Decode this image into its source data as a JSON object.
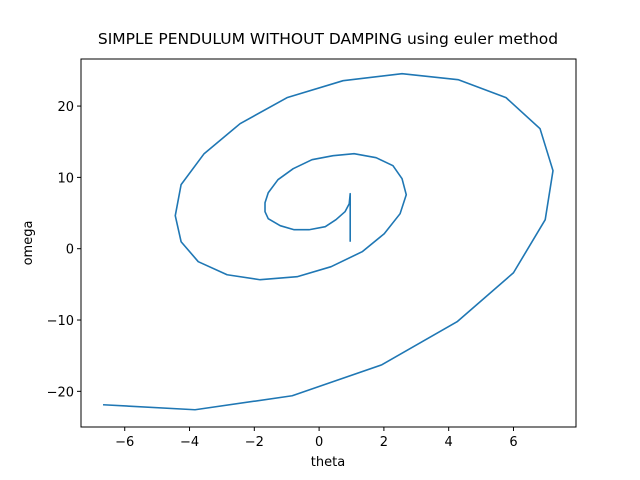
{
  "chart_data": {
    "type": "line",
    "title": "SIMPLE PENDULUM WITHOUT DAMPING using euler method",
    "xlabel": "theta",
    "ylabel": "omega",
    "color": "#1f77b4",
    "x": [
      0.96,
      0.96,
      0.93,
      0.8,
      0.52,
      0.19,
      -0.31,
      -0.77,
      -1.2,
      -1.57,
      -1.67,
      -1.67,
      -1.57,
      -1.27,
      -0.8,
      -0.22,
      0.43,
      1.08,
      1.76,
      2.28,
      2.56,
      2.69,
      2.5,
      2.01,
      1.33,
      0.37,
      -0.68,
      -1.82,
      -2.84,
      -3.73,
      -4.26,
      -4.44,
      -4.26,
      -3.55,
      -2.44,
      -0.99,
      0.74,
      2.56,
      4.29,
      5.77,
      6.82,
      7.22,
      6.98,
      6.0,
      4.26,
      1.94,
      -0.83,
      -3.83,
      -6.67
    ],
    "values": [
      0.98,
      7.71,
      6.31,
      5.19,
      4.07,
      3.09,
      2.66,
      2.66,
      3.23,
      4.21,
      5.19,
      6.45,
      7.85,
      9.68,
      11.22,
      12.48,
      13.04,
      13.32,
      12.76,
      11.64,
      9.82,
      7.57,
      4.91,
      2.1,
      -0.42,
      -2.52,
      -3.93,
      -4.35,
      -3.65,
      -1.82,
      0.98,
      4.63,
      8.98,
      13.32,
      17.53,
      21.18,
      23.56,
      24.54,
      23.7,
      21.18,
      16.83,
      10.94,
      4.07,
      -3.37,
      -10.24,
      -16.27,
      -20.62,
      -22.58,
      -21.88
    ],
    "xlim": [
      -7.35,
      7.93
    ],
    "ylim": [
      -25.0,
      26.6
    ],
    "xticks": [
      {
        "value": -6,
        "label": "−6"
      },
      {
        "value": -4,
        "label": "−4"
      },
      {
        "value": -2,
        "label": "−2"
      },
      0,
      2,
      4,
      6
    ],
    "yticks": [
      {
        "value": -20,
        "label": "−20"
      },
      {
        "value": -10,
        "label": "−10"
      },
      0,
      10,
      20
    ],
    "grid": false
  }
}
